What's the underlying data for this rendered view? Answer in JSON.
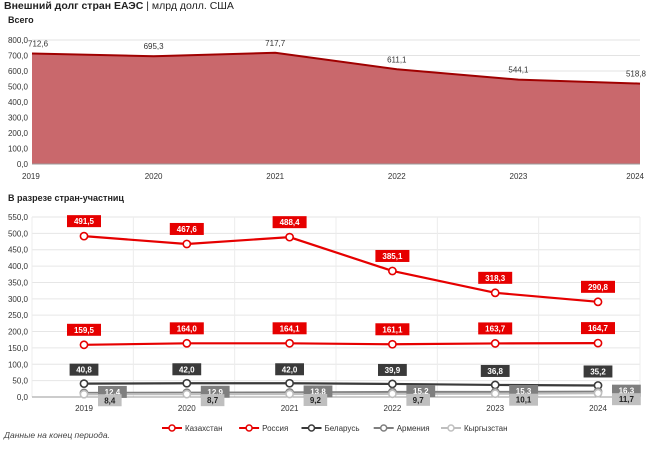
{
  "title": {
    "bold": "Внешний долг стран ЕАЭС",
    "rest": " | млрд долл. США"
  },
  "section1": "Всего",
  "section2": "В разрезе стран-участниц",
  "note": "Данные на конец периода.",
  "colors": {
    "kz": "#8b0000",
    "ru": "#e60000",
    "by": "#3a3a3a",
    "am": "#7f7f7f",
    "kg": "#bfbfbf",
    "area_fill": "#c9686c",
    "area_line": "#a00000"
  },
  "chart_data": [
    {
      "type": "area",
      "title": "Всего",
      "x": [
        "2019",
        "2020",
        "2021",
        "2022",
        "2023",
        "2024"
      ],
      "values": [
        712.6,
        695.3,
        717.7,
        611.1,
        544.1,
        518.8
      ],
      "value_labels": [
        "712,6",
        "695,3",
        "717,7",
        "611,1",
        "544,1",
        "518,8"
      ],
      "ylim": [
        0,
        800
      ],
      "yticks": [
        "0,0",
        "100,0",
        "200,0",
        "300,0",
        "400,0",
        "500,0",
        "600,0",
        "700,0",
        "800,0"
      ],
      "grid": true
    },
    {
      "type": "line",
      "title": "В разрезе стран-участниц",
      "x": [
        "2019",
        "2020",
        "2021",
        "2022",
        "2023",
        "2024"
      ],
      "ylim": [
        0,
        550
      ],
      "yticks": [
        "0,0",
        "50,0",
        "100,0",
        "150,0",
        "200,0",
        "250,0",
        "300,0",
        "350,0",
        "400,0",
        "450,0",
        "500,0",
        "550,0"
      ],
      "legend": "bottom",
      "series": [
        {
          "name": "Казахстан",
          "key": "kz",
          "values": [
            159.5,
            164.0,
            164.1,
            161.1,
            163.7,
            164.7
          ],
          "labels": [
            "159,5",
            "164,0",
            "164,1",
            "161,1",
            "163,7",
            "164,7"
          ]
        },
        {
          "name": "Россия",
          "key": "ru",
          "values": [
            491.5,
            467.6,
            488.4,
            385.1,
            318.3,
            290.8
          ],
          "labels": [
            "491,5",
            "467,6",
            "488,4",
            "385,1",
            "318,3",
            "290,8"
          ]
        },
        {
          "name": "Беларусь",
          "key": "by",
          "values": [
            40.8,
            42.0,
            42.0,
            39.9,
            36.8,
            35.2
          ],
          "labels": [
            "40,8",
            "42,0",
            "42,0",
            "39,9",
            "36,8",
            "35,2"
          ]
        },
        {
          "name": "Армения",
          "key": "am",
          "values": [
            12.4,
            12.9,
            13.8,
            15.2,
            15.3,
            16.3
          ],
          "labels": [
            "12,4",
            "12,9",
            "13,8",
            "15,2",
            "15,3",
            "16,3"
          ]
        },
        {
          "name": "Кыргызстан",
          "key": "kg",
          "values": [
            8.4,
            8.7,
            9.2,
            9.7,
            10.1,
            11.7
          ],
          "labels": [
            "8,4",
            "8,7",
            "9,2",
            "9,7",
            "10,1",
            "11,7"
          ]
        }
      ]
    }
  ]
}
